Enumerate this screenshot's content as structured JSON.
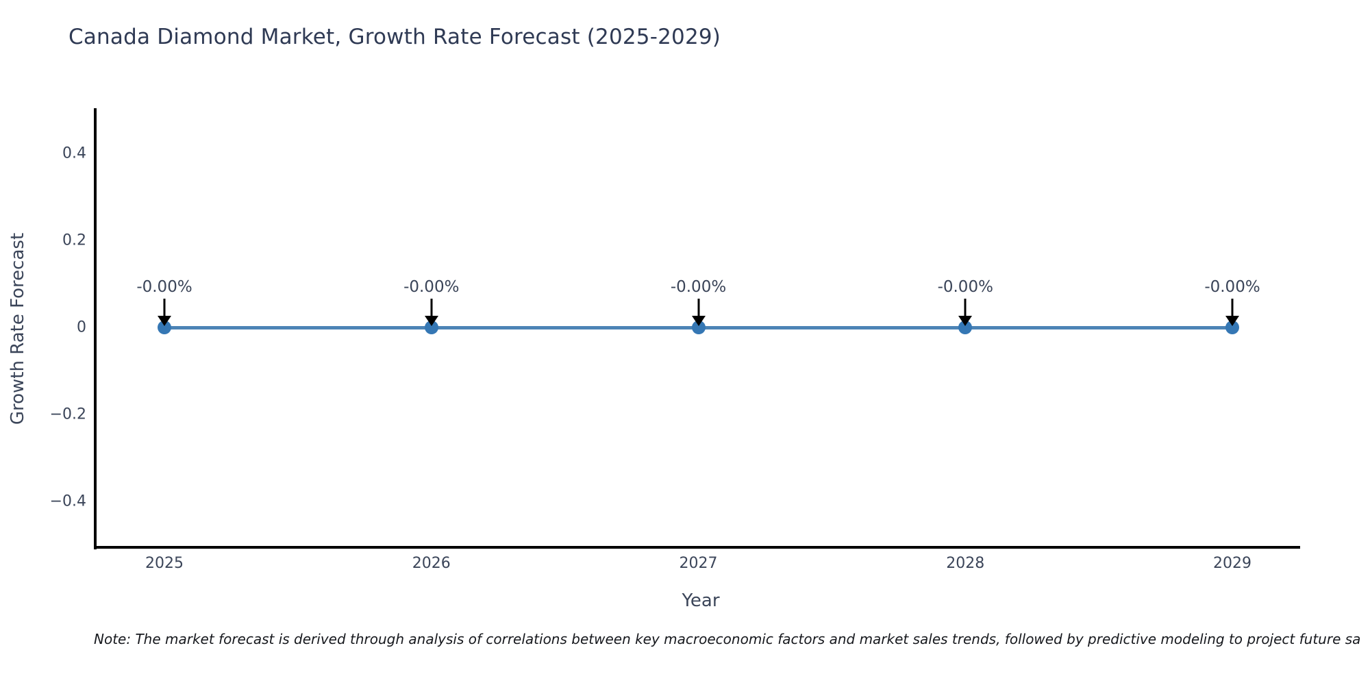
{
  "title": "Canada Diamond Market, Growth Rate Forecast (2025-2029)",
  "note": "Note: The market forecast is derived through analysis of correlations between key macroeconomic factors and market sales trends, followed by predictive modeling to project future sa",
  "chart_data": {
    "type": "line",
    "title": "Canada Diamond Market, Growth Rate Forecast (2025-2029)",
    "xlabel": "Year",
    "ylabel": "Growth Rate Forecast",
    "categories": [
      "2025",
      "2026",
      "2027",
      "2028",
      "2029"
    ],
    "x": [
      2025,
      2026,
      2027,
      2028,
      2029
    ],
    "series": [
      {
        "name": "Growth Rate Forecast",
        "values": [
          0,
          0,
          0,
          0,
          0
        ],
        "point_labels": [
          "-0.00%",
          "-0.00%",
          "-0.00%",
          "-0.00%",
          "-0.00%"
        ]
      }
    ],
    "yticks": [
      {
        "label": "0.4",
        "value": 0.4
      },
      {
        "label": "0.2",
        "value": 0.2
      },
      {
        "label": "0",
        "value": 0
      },
      {
        "label": "−0.2",
        "value": -0.2
      },
      {
        "label": "−0.4",
        "value": -0.4
      }
    ],
    "ylim": [
      -0.51,
      0.5
    ],
    "grid": false,
    "legend_position": "none",
    "marker_style": "circle",
    "annotation_arrows": true,
    "colors": {
      "line": "#4c84b6",
      "marker": "#3577b4",
      "arrow": "#000000"
    }
  }
}
